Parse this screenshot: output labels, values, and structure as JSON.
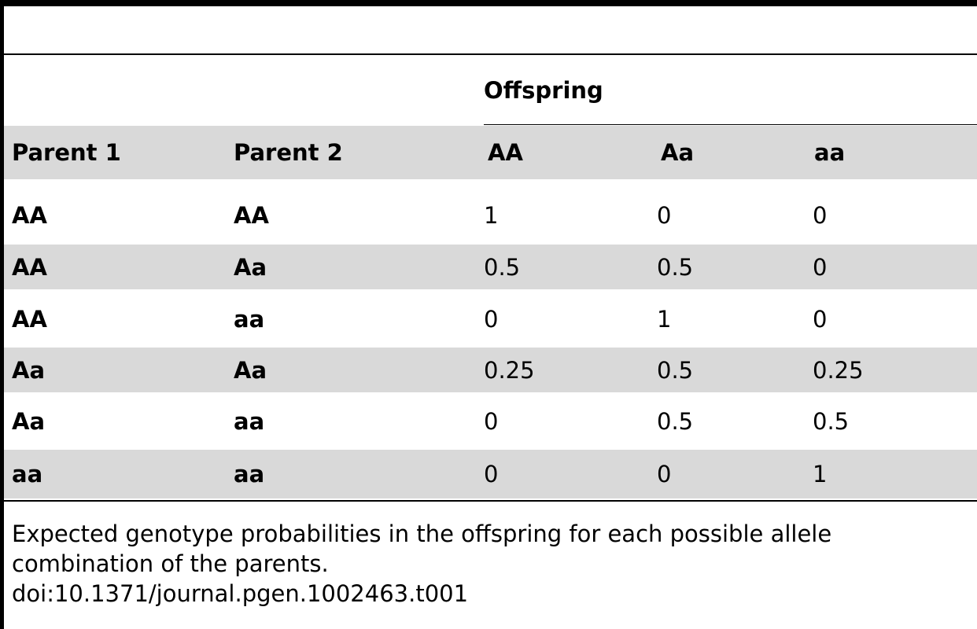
{
  "table": {
    "group_header": "Offspring",
    "columns": [
      "Parent 1",
      "Parent 2",
      "AA",
      "Aa",
      "aa"
    ],
    "rows": [
      [
        "AA",
        "AA",
        "1",
        "0",
        "0"
      ],
      [
        "AA",
        "Aa",
        "0.5",
        "0.5",
        "0"
      ],
      [
        "AA",
        "aa",
        "0",
        "1",
        "0"
      ],
      [
        "Aa",
        "Aa",
        "0.25",
        "0.5",
        "0.25"
      ],
      [
        "Aa",
        "aa",
        "0",
        "0.5",
        "0.5"
      ],
      [
        "aa",
        "aa",
        "0",
        "0",
        "1"
      ]
    ]
  },
  "caption": {
    "text": "Expected genotype probabilities in the offspring for each possible allele combination of the parents.",
    "doi": "doi:10.1371/journal.pgen.1002463.t001"
  }
}
